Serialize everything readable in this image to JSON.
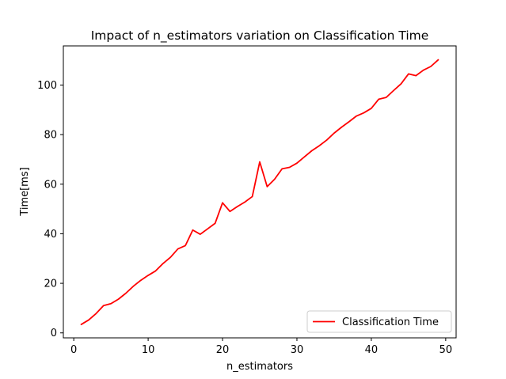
{
  "chart_data": {
    "type": "line",
    "title": "Impact of n_estimators variation on Classification Time",
    "xlabel": "n_estimators",
    "ylabel": "Time[ms]",
    "xlim": [
      -1.4,
      51.4
    ],
    "ylim": [
      -2.0,
      115.8
    ],
    "xticks": [
      0,
      10,
      20,
      30,
      40,
      50
    ],
    "yticks": [
      0,
      20,
      40,
      60,
      80,
      100
    ],
    "grid": false,
    "legend_position": "lower right",
    "series": [
      {
        "name": "Classification Time",
        "color": "#ff0000",
        "x": [
          1,
          2,
          3,
          4,
          5,
          6,
          7,
          8,
          9,
          10,
          11,
          12,
          13,
          14,
          15,
          16,
          17,
          18,
          19,
          20,
          21,
          22,
          23,
          24,
          25,
          26,
          27,
          28,
          29,
          30,
          31,
          32,
          33,
          34,
          35,
          36,
          37,
          38,
          39,
          40,
          41,
          42,
          43,
          44,
          45,
          46,
          47,
          48,
          49
        ],
        "y": [
          3.4,
          5.2,
          7.8,
          11.0,
          11.8,
          13.6,
          16.0,
          18.8,
          21.2,
          23.2,
          25.0,
          28.0,
          30.5,
          33.9,
          35.2,
          41.5,
          39.8,
          42.0,
          44.2,
          52.5,
          49.0,
          51.0,
          52.8,
          55.0,
          69.0,
          59.0,
          62.0,
          66.2,
          66.8,
          68.5,
          71.0,
          73.5,
          75.5,
          77.8,
          80.6,
          83.0,
          85.2,
          87.5,
          88.8,
          90.6,
          94.3,
          95.0,
          97.8,
          100.5,
          104.5,
          103.8,
          106.0,
          107.5,
          110.2
        ]
      }
    ]
  }
}
